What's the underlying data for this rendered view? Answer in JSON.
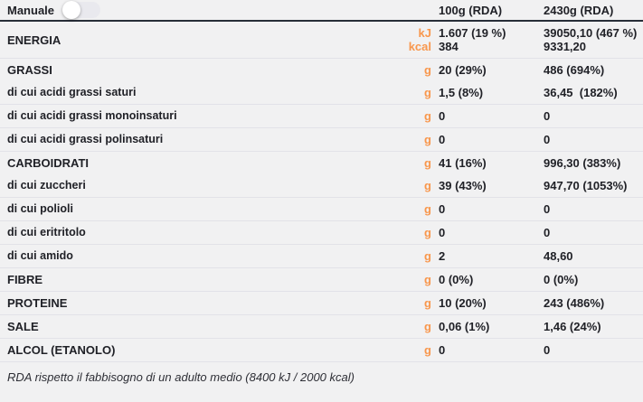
{
  "header": {
    "manual_label": "Manuale",
    "toggle_state": "off",
    "col1": "100g (RDA)",
    "col2": "2430g (RDA)"
  },
  "colors": {
    "accent_orange": "#f8974d",
    "text_dark": "#202127",
    "background": "#f1f1f2",
    "divider": "#e2e2e8",
    "header_line": "#272d38",
    "toggle_track": "#e9e9ee",
    "toggle_knob": "#ffffff"
  },
  "rows": [
    {
      "label": "ENERGIA",
      "section": true,
      "units": [
        "kJ",
        "kcal"
      ],
      "col1": [
        "1.607 (19 %)",
        "384"
      ],
      "col2": [
        "39050,10 (467 %)",
        "9331,20"
      ],
      "divider_after": true
    },
    {
      "label": "GRASSI",
      "section": true,
      "units": [
        "g"
      ],
      "col1": [
        "20 (29%)"
      ],
      "col2": [
        "486 (694%)"
      ],
      "divider_after": false
    },
    {
      "label": "di cui acidi grassi saturi",
      "section": false,
      "units": [
        "g"
      ],
      "col1": [
        "1,5 (8%)"
      ],
      "col2": [
        "36,45  (182%)"
      ],
      "divider_after": true
    },
    {
      "label": "di cui acidi grassi monoinsaturi",
      "section": false,
      "units": [
        "g"
      ],
      "col1": [
        "0"
      ],
      "col2": [
        "0"
      ],
      "divider_after": true
    },
    {
      "label": "di cui acidi grassi polinsaturi",
      "section": false,
      "units": [
        "g"
      ],
      "col1": [
        "0"
      ],
      "col2": [
        "0"
      ],
      "divider_after": true
    },
    {
      "label": "CARBOIDRATI",
      "section": true,
      "units": [
        "g"
      ],
      "col1": [
        "41 (16%)"
      ],
      "col2": [
        "996,30 (383%)"
      ],
      "divider_after": false
    },
    {
      "label": "di cui zuccheri",
      "section": false,
      "units": [
        "g"
      ],
      "col1": [
        "39 (43%)"
      ],
      "col2": [
        "947,70 (1053%)"
      ],
      "divider_after": true
    },
    {
      "label": "di cui polioli",
      "section": false,
      "units": [
        "g"
      ],
      "col1": [
        "0"
      ],
      "col2": [
        "0"
      ],
      "divider_after": true
    },
    {
      "label": "di cui eritritolo",
      "section": false,
      "units": [
        "g"
      ],
      "col1": [
        "0"
      ],
      "col2": [
        "0"
      ],
      "divider_after": true
    },
    {
      "label": "di cui amido",
      "section": false,
      "units": [
        "g"
      ],
      "col1": [
        "2"
      ],
      "col2": [
        "48,60"
      ],
      "divider_after": true
    },
    {
      "label": "FIBRE",
      "section": true,
      "units": [
        "g"
      ],
      "col1": [
        "0 (0%)"
      ],
      "col2": [
        "0 (0%)"
      ],
      "divider_after": true
    },
    {
      "label": "PROTEINE",
      "section": true,
      "units": [
        "g"
      ],
      "col1": [
        "10 (20%)"
      ],
      "col2": [
        "243 (486%)"
      ],
      "divider_after": true
    },
    {
      "label": "SALE",
      "section": true,
      "units": [
        "g"
      ],
      "col1": [
        "0,06 (1%)"
      ],
      "col2": [
        "1,46 (24%)"
      ],
      "divider_after": true
    },
    {
      "label": "ALCOL (ETANOLO)",
      "section": true,
      "units": [
        "g"
      ],
      "col1": [
        "0"
      ],
      "col2": [
        "0"
      ],
      "divider_after": true
    }
  ],
  "footer": {
    "note": "RDA rispetto il fabbisogno di un adulto medio (8400 kJ / 2000 kcal)"
  }
}
